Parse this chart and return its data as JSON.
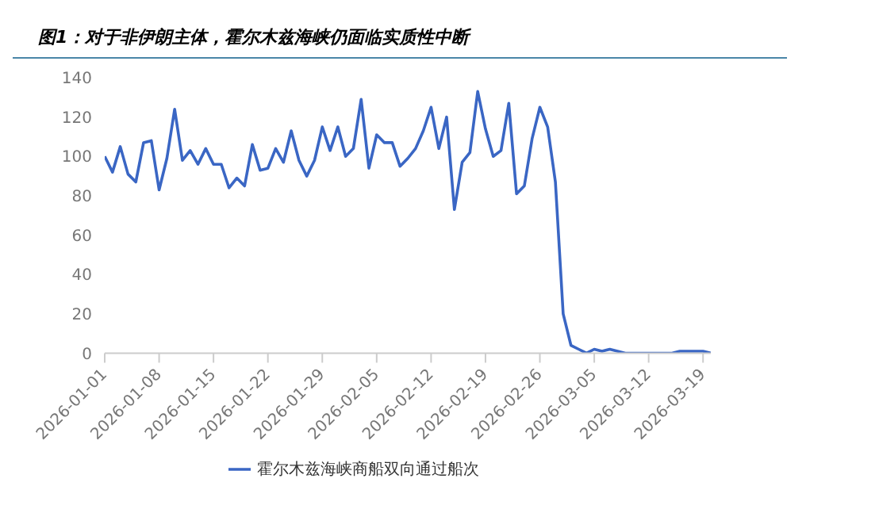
{
  "chart_data": {
    "type": "line",
    "title": "图1：对于非伊朗主体，霍尔木兹海峡仍面临实质性中断",
    "x": [
      "2026-01-01",
      "2026-01-02",
      "2026-01-03",
      "2026-01-04",
      "2026-01-05",
      "2026-01-06",
      "2026-01-07",
      "2026-01-08",
      "2026-01-09",
      "2026-01-10",
      "2026-01-11",
      "2026-01-12",
      "2026-01-13",
      "2026-01-14",
      "2026-01-15",
      "2026-01-16",
      "2026-01-17",
      "2026-01-18",
      "2026-01-19",
      "2026-01-20",
      "2026-01-21",
      "2026-01-22",
      "2026-01-23",
      "2026-01-24",
      "2026-01-25",
      "2026-01-26",
      "2026-01-27",
      "2026-01-28",
      "2026-01-29",
      "2026-01-30",
      "2026-01-31",
      "2026-02-01",
      "2026-02-02",
      "2026-02-03",
      "2026-02-04",
      "2026-02-05",
      "2026-02-06",
      "2026-02-07",
      "2026-02-08",
      "2026-02-09",
      "2026-02-10",
      "2026-02-11",
      "2026-02-12",
      "2026-02-13",
      "2026-02-14",
      "2026-02-15",
      "2026-02-16",
      "2026-02-17",
      "2026-02-18",
      "2026-02-19",
      "2026-02-20",
      "2026-02-21",
      "2026-02-22",
      "2026-02-23",
      "2026-02-24",
      "2026-02-25",
      "2026-02-26",
      "2026-02-27",
      "2026-02-28",
      "2026-03-01",
      "2026-03-02",
      "2026-03-03",
      "2026-03-04",
      "2026-03-05",
      "2026-03-06",
      "2026-03-07",
      "2026-03-08",
      "2026-03-09",
      "2026-03-10",
      "2026-03-11",
      "2026-03-12",
      "2026-03-13",
      "2026-03-14",
      "2026-03-15",
      "2026-03-16",
      "2026-03-17",
      "2026-03-18",
      "2026-03-19",
      "2026-03-20"
    ],
    "series": [
      {
        "name": "霍尔木兹海峡商船双向通过船次",
        "color": "#3a66c4",
        "values": [
          100,
          92,
          105,
          91,
          87,
          107,
          108,
          83,
          99,
          124,
          98,
          103,
          96,
          104,
          96,
          96,
          84,
          89,
          85,
          106,
          93,
          94,
          104,
          97,
          113,
          98,
          90,
          98,
          115,
          103,
          115,
          100,
          104,
          129,
          94,
          111,
          107,
          107,
          95,
          99,
          104,
          113,
          125,
          104,
          120,
          73,
          97,
          102,
          133,
          114,
          100,
          103,
          127,
          81,
          85,
          109,
          125,
          115,
          87,
          20,
          4,
          2,
          0,
          2,
          1,
          2,
          1,
          0,
          0,
          0,
          0,
          0,
          0,
          0,
          1,
          1,
          1,
          1,
          0
        ]
      }
    ],
    "ylim": [
      0,
      140
    ],
    "yticks": [
      0,
      20,
      40,
      60,
      80,
      100,
      120,
      140
    ],
    "xlim": [
      "2026-01-01",
      "2026-03-20"
    ],
    "xticks": [
      "2026-01-01",
      "2026-01-08",
      "2026-01-15",
      "2026-01-22",
      "2026-01-29",
      "2026-02-05",
      "2026-02-12",
      "2026-02-19",
      "2026-02-26",
      "2026-03-05",
      "2026-03-12",
      "2026-03-19"
    ],
    "grid": false,
    "legend": "bottom",
    "marker": "none",
    "line_style": "solid"
  }
}
